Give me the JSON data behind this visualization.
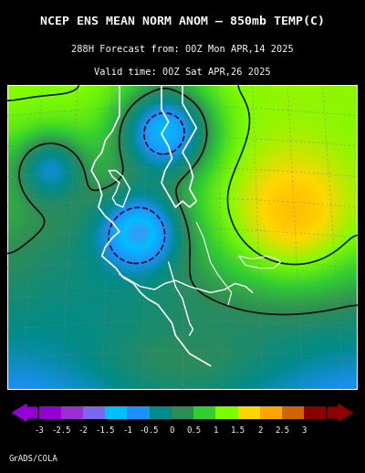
{
  "title_line1": "NCEP ENS MEAN NORM ANOM – 850mb TEMP(C)",
  "title_line2": "288H Forecast from: 00Z Mon APR,14 2025",
  "title_line3": "Valid time: 00Z Sat APR,26 2025",
  "colorbar_labels": [
    "-3",
    "-2.5",
    "-2",
    "-1.5",
    "-1",
    "-0.5",
    "0",
    "0.5",
    "1",
    "1.5",
    "2",
    "2.5",
    "3"
  ],
  "colorbar_colors": [
    "#9400D3",
    "#9B30D0",
    "#7B68EE",
    "#00BFFF",
    "#1E90FF",
    "#008B8B",
    "#2E8B57",
    "#32CD32",
    "#7CFC00",
    "#FFD700",
    "#FFA500",
    "#CD6600",
    "#8B0000"
  ],
  "background_color": "#000000",
  "map_bg_color": "#000000",
  "credit_text": "GrADS/COLA",
  "fig_width": 4.0,
  "fig_height": 5.18
}
